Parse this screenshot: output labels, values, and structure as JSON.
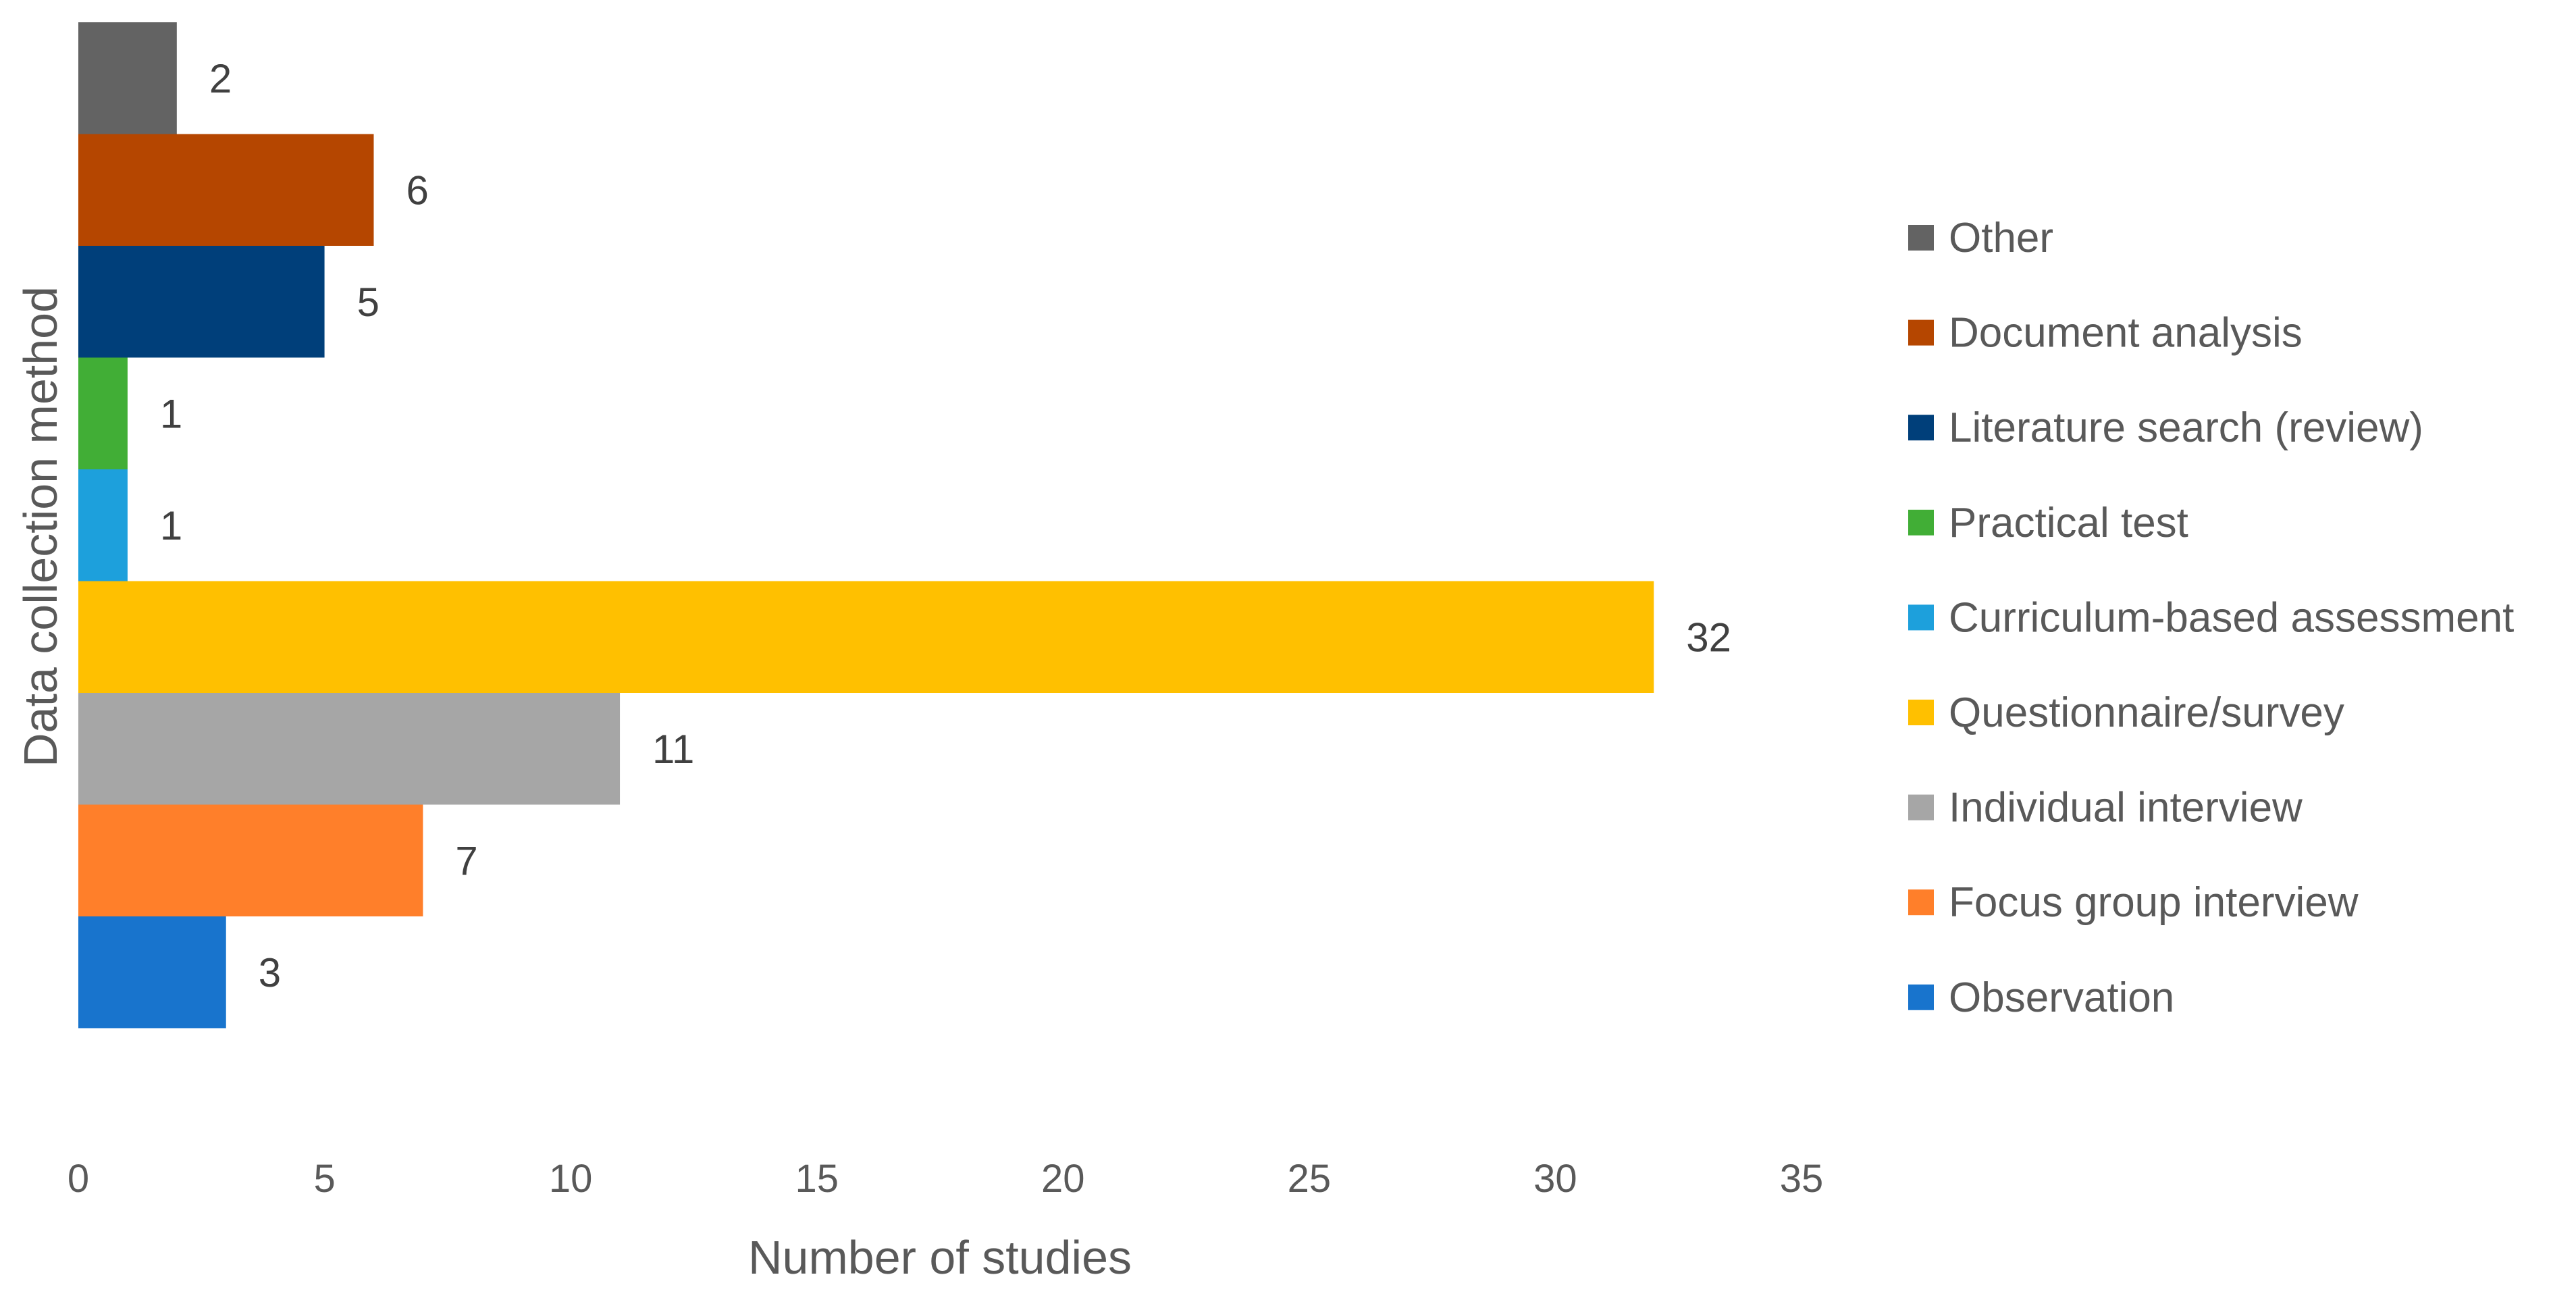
{
  "chart_data": {
    "type": "bar",
    "orientation": "horizontal",
    "categories": [
      "Other",
      "Document analysis",
      "Literature search (review)",
      "Practical test",
      "Curriculum-based assessment",
      "Questionnaire/survey",
      "Individual interview",
      "Focus group interview",
      "Observation"
    ],
    "values": [
      2,
      6,
      5,
      1,
      1,
      32,
      11,
      7,
      3
    ],
    "colors": [
      "#636363",
      "#B54600",
      "#003F7A",
      "#41AE36",
      "#1DA0DC",
      "#FFC000",
      "#A6A6A6",
      "#FF7F2A",
      "#1874CD"
    ],
    "xlabel": "Number of studies",
    "ylabel": "Data collection method",
    "xlim": [
      0,
      35
    ],
    "xticks": [
      0,
      5,
      10,
      15,
      20,
      25,
      30,
      35
    ],
    "grid": false,
    "legend_position": "right"
  }
}
